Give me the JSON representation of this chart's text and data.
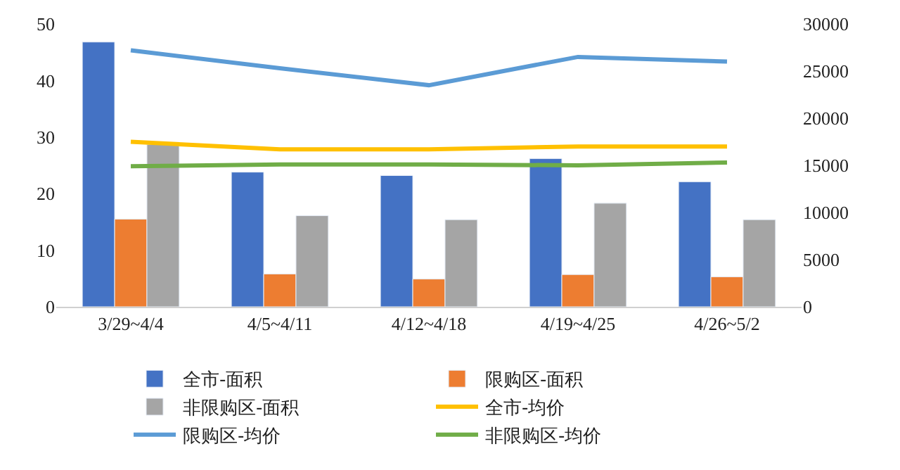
{
  "chart_data": {
    "type": "bar",
    "categories": [
      "3/29~4/4",
      "4/5~4/11",
      "4/12~4/18",
      "4/19~4/25",
      "4/26~5/2"
    ],
    "series": [
      {
        "name": "全市-面积",
        "color": "#4472c4",
        "values": [
          46.8,
          23.8,
          23.2,
          26.2,
          22.1
        ]
      },
      {
        "name": "限购区-面积",
        "color": "#ed7d31",
        "values": [
          15.5,
          5.8,
          4.9,
          5.7,
          5.3
        ]
      },
      {
        "name": "非限购区-面积",
        "color": "#a5a5a5",
        "values": [
          28.7,
          16.1,
          15.4,
          18.3,
          15.4
        ]
      },
      {
        "name": "全市-均价",
        "type": "line",
        "axis": "y2",
        "color": "#ffc000",
        "values": [
          17500,
          16700,
          16700,
          17000,
          17000
        ]
      },
      {
        "name": "限购区-均价",
        "type": "line",
        "axis": "y2",
        "color": "#5b9bd5",
        "values": [
          27200,
          25300,
          23500,
          26500,
          26000
        ]
      },
      {
        "name": "非限购区-均价",
        "type": "line",
        "axis": "y2",
        "color": "#70ad47",
        "values": [
          14900,
          15100,
          15100,
          15000,
          15300
        ]
      }
    ],
    "ylim": [
      0,
      50
    ],
    "yticks": [
      0,
      10,
      20,
      30,
      40,
      50
    ],
    "y2lim": [
      0,
      30000
    ],
    "y2ticks": [
      0,
      5000,
      10000,
      15000,
      20000,
      25000,
      30000
    ],
    "legend": "bottom",
    "marker": "none",
    "line_style": "solid"
  }
}
